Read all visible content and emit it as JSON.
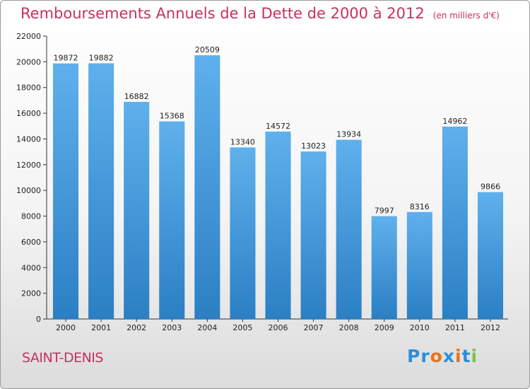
{
  "page": {
    "title": "Remboursements Annuels de la Dette de 2000 à 2012",
    "unit": "(en milliers d'€)",
    "city": "SAINT-DENIS",
    "brand": "Proxiti"
  },
  "colors": {
    "title": "#c8325a",
    "bar_top": "#5fb0ec",
    "bar_bottom": "#2b7fc4",
    "logo": [
      "#2b8fd8",
      "#2b8fd8",
      "#e8731a",
      "#2b8fd8",
      "#e8731a",
      "#2b8fd8",
      "#7cc242"
    ]
  },
  "chart_data": {
    "type": "bar",
    "title": "Remboursements Annuels de la Dette de 2000 à 2012",
    "categories": [
      "2000",
      "2001",
      "2002",
      "2003",
      "2004",
      "2005",
      "2006",
      "2007",
      "2008",
      "2009",
      "2010",
      "2011",
      "2012"
    ],
    "values": [
      19872,
      19882,
      16882,
      15368,
      20509,
      13340,
      14572,
      13023,
      13934,
      7997,
      8316,
      14962,
      9866
    ],
    "yticks": [
      0,
      2000,
      4000,
      6000,
      8000,
      10000,
      12000,
      14000,
      16000,
      18000,
      20000,
      22000
    ],
    "ylim": [
      0,
      22000
    ],
    "grid": false,
    "legend": "none"
  }
}
